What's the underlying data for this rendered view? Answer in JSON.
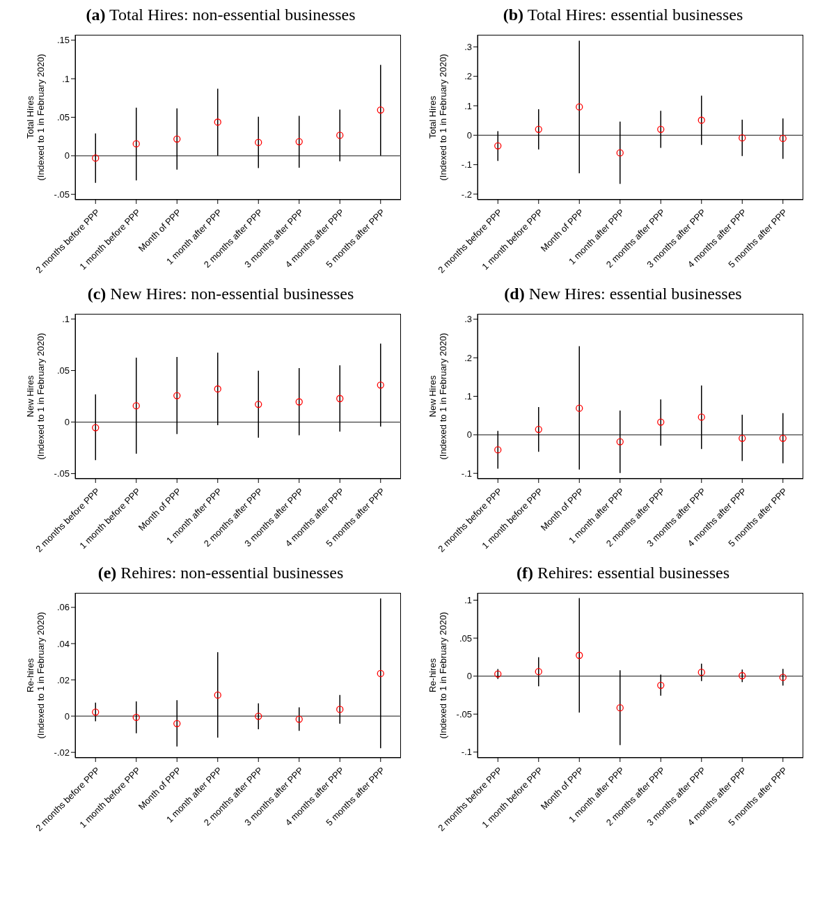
{
  "chart_data": [
    {
      "type": "scatter",
      "title": "(a) Total Hires: non-essential businesses",
      "ylabel": "Total Hires\n(Indexed to 1 in February 2020)",
      "categories": [
        "2 months before PPP",
        "1 month before PPP",
        "Month of PPP",
        "1 month after PPP",
        "2 months after PPP",
        "3 months after PPP",
        "4 months after PPP",
        "5 months after PPP"
      ],
      "color": "#ff0000",
      "marker": "circle",
      "values": [
        -0.003,
        0.0155,
        0.0217,
        0.0437,
        0.0173,
        0.0183,
        0.0266,
        0.0594
      ],
      "errors": [
        [
          -0.035,
          0.029
        ],
        [
          -0.032,
          0.0625
        ],
        [
          -0.018,
          0.0616
        ],
        [
          0,
          0.087
        ],
        [
          -0.016,
          0.0507
        ],
        [
          -0.0155,
          0.0517
        ],
        [
          -0.007,
          0.06
        ],
        [
          0,
          0.118
        ]
      ],
      "ylim": [
        -0.057,
        0.157
      ],
      "yticks": [
        {
          "value": -0.05,
          "label": "-.05"
        },
        {
          "value": 0,
          "label": "0"
        },
        {
          "value": 0.05,
          "label": ".05"
        },
        {
          "value": 0.1,
          "label": ".1"
        },
        {
          "value": 0.15,
          "label": ".15"
        }
      ],
      "ref_lines": [
        {
          "axis": "y",
          "value": 0,
          "color": "#404040"
        }
      ]
    },
    {
      "type": "scatter",
      "title": "(b) Total Hires: essential businesses",
      "ylabel": "Total Hires\n(Indexed to 1 in February 2020)",
      "categories": [
        "2 months before PPP",
        "1 month before PPP",
        "Month of PPP",
        "1 month after PPP",
        "2 months after PPP",
        "3 months after PPP",
        "4 months after PPP",
        "5 months after PPP"
      ],
      "color": "#ff0000",
      "marker": "circle",
      "values": [
        -0.036,
        0.02,
        0.096,
        -0.06,
        0.02,
        0.051,
        -0.009,
        -0.011
      ],
      "errors": [
        [
          -0.087,
          0.014
        ],
        [
          -0.048,
          0.088
        ],
        [
          -0.129,
          0.321
        ],
        [
          -0.165,
          0.046
        ],
        [
          -0.043,
          0.083
        ],
        [
          -0.033,
          0.134
        ],
        [
          -0.071,
          0.053
        ],
        [
          -0.08,
          0.057
        ]
      ],
      "ylim": [
        -0.219,
        0.341
      ],
      "yticks": [
        {
          "value": -0.2,
          "label": "-.2"
        },
        {
          "value": -0.1,
          "label": "-.1"
        },
        {
          "value": 0,
          "label": "0"
        },
        {
          "value": 0.1,
          "label": ".1"
        },
        {
          "value": 0.2,
          "label": ".2"
        },
        {
          "value": 0.3,
          "label": ".3"
        }
      ],
      "ref_lines": [
        {
          "axis": "y",
          "value": 0,
          "color": "#404040"
        }
      ]
    },
    {
      "type": "scatter",
      "title": "(c) New Hires: non-essential businesses",
      "ylabel": "New Hires\n(Indexed to 1 in February 2020)",
      "categories": [
        "2 months before PPP",
        "1 month before PPP",
        "Month of PPP",
        "1 month after PPP",
        "2 months after PPP",
        "3 months after PPP",
        "4 months after PPP",
        "5 months after PPP"
      ],
      "color": "#ff0000",
      "marker": "circle",
      "values": [
        -0.0054,
        0.0158,
        0.0256,
        0.0321,
        0.0172,
        0.0196,
        0.0228,
        0.0359
      ],
      "errors": [
        [
          -0.037,
          0.0268
        ],
        [
          -0.0307,
          0.0624
        ],
        [
          -0.0116,
          0.0631
        ],
        [
          -0.003,
          0.0673
        ],
        [
          -0.0151,
          0.0498
        ],
        [
          -0.0128,
          0.0524
        ],
        [
          -0.0093,
          0.055
        ],
        [
          -0.0044,
          0.0762
        ]
      ],
      "ylim": [
        -0.055,
        0.105
      ],
      "yticks": [
        {
          "value": -0.05,
          "label": "-.05"
        },
        {
          "value": 0,
          "label": "0"
        },
        {
          "value": 0.05,
          "label": ".05"
        },
        {
          "value": 0.1,
          "label": ".1"
        }
      ],
      "ref_lines": [
        {
          "axis": "y",
          "value": 0,
          "color": "#404040"
        }
      ]
    },
    {
      "type": "scatter",
      "title": "(d) New Hires: essential businesses",
      "ylabel": "New Hires\n(Indexed to 1 in February 2020)",
      "categories": [
        "2 months before PPP",
        "1 month before PPP",
        "Month of PPP",
        "1 month after PPP",
        "2 months after PPP",
        "3 months after PPP",
        "4 months after PPP",
        "5 months after PPP"
      ],
      "color": "#ff0000",
      "marker": "circle",
      "values": [
        -0.039,
        0.014,
        0.069,
        -0.018,
        0.033,
        0.046,
        -0.009,
        -0.009
      ],
      "errors": [
        [
          -0.088,
          0.01
        ],
        [
          -0.044,
          0.072
        ],
        [
          -0.09,
          0.23
        ],
        [
          -0.099,
          0.063
        ],
        [
          -0.028,
          0.092
        ],
        [
          -0.037,
          0.128
        ],
        [
          -0.068,
          0.052
        ],
        [
          -0.074,
          0.056
        ]
      ],
      "ylim": [
        -0.114,
        0.314
      ],
      "yticks": [
        {
          "value": -0.1,
          "label": "-.1"
        },
        {
          "value": 0,
          "label": "0"
        },
        {
          "value": 0.1,
          "label": ".1"
        },
        {
          "value": 0.2,
          "label": ".2"
        },
        {
          "value": 0.3,
          "label": ".3"
        }
      ],
      "ref_lines": [
        {
          "axis": "y",
          "value": 0,
          "color": "#404040"
        }
      ]
    },
    {
      "type": "scatter",
      "title": "(e) Rehires: non-essential businesses",
      "ylabel": "Re-hires\n(Indexed to 1 in February 2020)",
      "categories": [
        "2 months before PPP",
        "1 month before PPP",
        "Month of PPP",
        "1 month after PPP",
        "2 months after PPP",
        "3 months after PPP",
        "4 months after PPP",
        "5 months after PPP"
      ],
      "color": "#ff0000",
      "marker": "circle",
      "values": [
        0.0022,
        -0.0007,
        -0.0041,
        0.0116,
        -0.0001,
        -0.0017,
        0.0037,
        0.0235
      ],
      "errors": [
        [
          -0.0028,
          0.0074
        ],
        [
          -0.0095,
          0.0081
        ],
        [
          -0.0168,
          0.0088
        ],
        [
          -0.0119,
          0.0353
        ],
        [
          -0.0073,
          0.007
        ],
        [
          -0.0081,
          0.0048
        ],
        [
          -0.0042,
          0.0117
        ],
        [
          -0.0177,
          0.0649
        ]
      ],
      "ylim": [
        -0.023,
        0.068
      ],
      "yticks": [
        {
          "value": -0.02,
          "label": "-.02"
        },
        {
          "value": 0,
          "label": "0"
        },
        {
          "value": 0.02,
          "label": ".02"
        },
        {
          "value": 0.04,
          "label": ".04"
        },
        {
          "value": 0.06,
          "label": ".06"
        }
      ],
      "ref_lines": [
        {
          "axis": "y",
          "value": 0,
          "color": "#404040"
        }
      ]
    },
    {
      "type": "scatter",
      "title": "(f) Rehires: essential businesses",
      "ylabel": "Re-hires\n(Indexed to 1 in February 2020)",
      "categories": [
        "2 months before PPP",
        "1 month before PPP",
        "Month of PPP",
        "1 month after PPP",
        "2 months after PPP",
        "3 months after PPP",
        "4 months after PPP",
        "5 months after PPP"
      ],
      "color": "#ff0000",
      "marker": "circle",
      "values": [
        0.0028,
        0.0059,
        0.0274,
        -0.0417,
        -0.0121,
        0.005,
        0.0006,
        -0.0016
      ],
      "errors": [
        [
          -0.0037,
          0.0093
        ],
        [
          -0.0134,
          0.0249
        ],
        [
          -0.0479,
          0.1027
        ],
        [
          -0.0908,
          0.0078
        ],
        [
          -0.0258,
          0.0019
        ],
        [
          -0.0065,
          0.0165
        ],
        [
          -0.0078,
          0.0087
        ],
        [
          -0.0124,
          0.0096
        ]
      ],
      "ylim": [
        -0.1075,
        0.1096
      ],
      "yticks": [
        {
          "value": -0.1,
          "label": "-.1"
        },
        {
          "value": -0.05,
          "label": "-.05"
        },
        {
          "value": 0,
          "label": "0"
        },
        {
          "value": 0.05,
          "label": ".05"
        },
        {
          "value": 0.1,
          "label": ".1"
        }
      ],
      "ref_lines": [
        {
          "axis": "y",
          "value": 0,
          "color": "#404040"
        }
      ]
    }
  ]
}
